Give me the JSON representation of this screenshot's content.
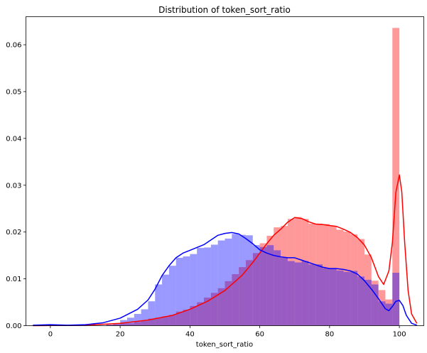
{
  "chart_data": {
    "type": "histogram",
    "title": "Distribution of token_sort_ratio",
    "xlabel": "token_sort_ratio",
    "ylabel": "",
    "xlim": [
      -7,
      107
    ],
    "ylim": [
      0,
      0.066
    ],
    "xticks": [
      0,
      20,
      40,
      60,
      80,
      100
    ],
    "yticks": [
      0.0,
      0.01,
      0.02,
      0.03,
      0.04,
      0.05,
      0.06
    ],
    "ytick_labels": [
      "0.00",
      "0.01",
      "0.02",
      "0.03",
      "0.04",
      "0.05",
      "0.06"
    ],
    "grid": false,
    "legend": "none",
    "bin_edges": [
      0,
      2,
      4,
      6,
      8,
      10,
      12,
      14,
      16,
      18,
      20,
      22,
      24,
      26,
      28,
      30,
      32,
      34,
      36,
      38,
      40,
      42,
      44,
      46,
      48,
      50,
      52,
      54,
      56,
      58,
      60,
      62,
      64,
      66,
      68,
      70,
      72,
      74,
      76,
      78,
      80,
      82,
      84,
      86,
      88,
      90,
      92,
      94,
      96,
      98,
      100
    ],
    "series": [
      {
        "color": "#ff0000",
        "bar_color": "#ff9999",
        "values": [
          0,
          0,
          0,
          0,
          0,
          0,
          0,
          0,
          0.0002,
          0.0003,
          0.0005,
          0.0005,
          0.0008,
          0.001,
          0.0015,
          0.0017,
          0.002,
          0.0023,
          0.003,
          0.0034,
          0.0042,
          0.005,
          0.006,
          0.007,
          0.008,
          0.0095,
          0.011,
          0.0125,
          0.014,
          0.0155,
          0.0176,
          0.0192,
          0.021,
          0.0213,
          0.0228,
          0.0232,
          0.0228,
          0.0218,
          0.0218,
          0.0217,
          0.0213,
          0.0205,
          0.0201,
          0.0195,
          0.0185,
          0.0152,
          0.0096,
          0.0076,
          0.0056,
          0.0636
        ],
        "kde": [
          [
            -5,
            0
          ],
          [
            10,
            0.0001
          ],
          [
            20,
            0.0005
          ],
          [
            28,
            0.0012
          ],
          [
            35,
            0.0022
          ],
          [
            40,
            0.0035
          ],
          [
            45,
            0.0052
          ],
          [
            50,
            0.0075
          ],
          [
            55,
            0.0108
          ],
          [
            58,
            0.0135
          ],
          [
            60,
            0.0155
          ],
          [
            62,
            0.0175
          ],
          [
            64,
            0.0193
          ],
          [
            66,
            0.0206
          ],
          [
            68,
            0.0221
          ],
          [
            70,
            0.0231
          ],
          [
            72,
            0.0229
          ],
          [
            74,
            0.0222
          ],
          [
            76,
            0.0217
          ],
          [
            78,
            0.0216
          ],
          [
            80,
            0.0214
          ],
          [
            82,
            0.0212
          ],
          [
            84,
            0.0206
          ],
          [
            86,
            0.0199
          ],
          [
            88,
            0.0188
          ],
          [
            90,
            0.0172
          ],
          [
            92,
            0.0145
          ],
          [
            94,
            0.0105
          ],
          [
            95.5,
            0.0088
          ],
          [
            97,
            0.0117
          ],
          [
            98,
            0.0178
          ],
          [
            99,
            0.0285
          ],
          [
            100,
            0.0322
          ],
          [
            100.7,
            0.0285
          ],
          [
            101.5,
            0.018
          ],
          [
            102.5,
            0.0075
          ],
          [
            103.5,
            0.0025
          ],
          [
            105,
            0.0005
          ]
        ]
      },
      {
        "color": "#0000ff",
        "bar_color": "#9999ff",
        "values": [
          0,
          0,
          0,
          0,
          0,
          0,
          0,
          0,
          0.0002,
          0.0005,
          0.0012,
          0.0017,
          0.0025,
          0.0035,
          0.0052,
          0.0088,
          0.0109,
          0.0128,
          0.0145,
          0.0148,
          0.0153,
          0.0166,
          0.0167,
          0.0173,
          0.0182,
          0.0186,
          0.0196,
          0.0194,
          0.0193,
          0.0172,
          0.0168,
          0.0172,
          0.0161,
          0.0145,
          0.0138,
          0.0135,
          0.0138,
          0.0131,
          0.0131,
          0.0123,
          0.0123,
          0.0118,
          0.0115,
          0.0117,
          0.0105,
          0.0098,
          0.0088,
          0.0052,
          0.0047,
          0.0113
        ],
        "kde": [
          [
            -5,
            0.0001
          ],
          [
            0,
            0.0002
          ],
          [
            5,
            0.0001
          ],
          [
            10,
            0.0002
          ],
          [
            15,
            0.0006
          ],
          [
            20,
            0.0016
          ],
          [
            25,
            0.0035
          ],
          [
            28,
            0.0055
          ],
          [
            30,
            0.0078
          ],
          [
            32,
            0.0107
          ],
          [
            34,
            0.0128
          ],
          [
            36,
            0.0145
          ],
          [
            38,
            0.0155
          ],
          [
            40,
            0.0161
          ],
          [
            42,
            0.0167
          ],
          [
            44,
            0.0173
          ],
          [
            46,
            0.0183
          ],
          [
            48,
            0.0193
          ],
          [
            50,
            0.0197
          ],
          [
            52,
            0.0199
          ],
          [
            54,
            0.0196
          ],
          [
            56,
            0.0186
          ],
          [
            58,
            0.0175
          ],
          [
            60,
            0.0162
          ],
          [
            62,
            0.0155
          ],
          [
            64,
            0.015
          ],
          [
            66,
            0.0147
          ],
          [
            68,
            0.0145
          ],
          [
            70,
            0.0145
          ],
          [
            72,
            0.014
          ],
          [
            74,
            0.0135
          ],
          [
            76,
            0.013
          ],
          [
            78,
            0.0125
          ],
          [
            80,
            0.0122
          ],
          [
            82,
            0.0122
          ],
          [
            84,
            0.012
          ],
          [
            86,
            0.0117
          ],
          [
            88,
            0.011
          ],
          [
            90,
            0.0096
          ],
          [
            92,
            0.0078
          ],
          [
            94,
            0.0058
          ],
          [
            96,
            0.0036
          ],
          [
            97,
            0.0032
          ],
          [
            98,
            0.0041
          ],
          [
            99,
            0.0052
          ],
          [
            100,
            0.0054
          ],
          [
            101,
            0.0043
          ],
          [
            102,
            0.0022
          ],
          [
            103.5,
            0.0005
          ],
          [
            105,
            0.0001
          ]
        ]
      }
    ]
  }
}
